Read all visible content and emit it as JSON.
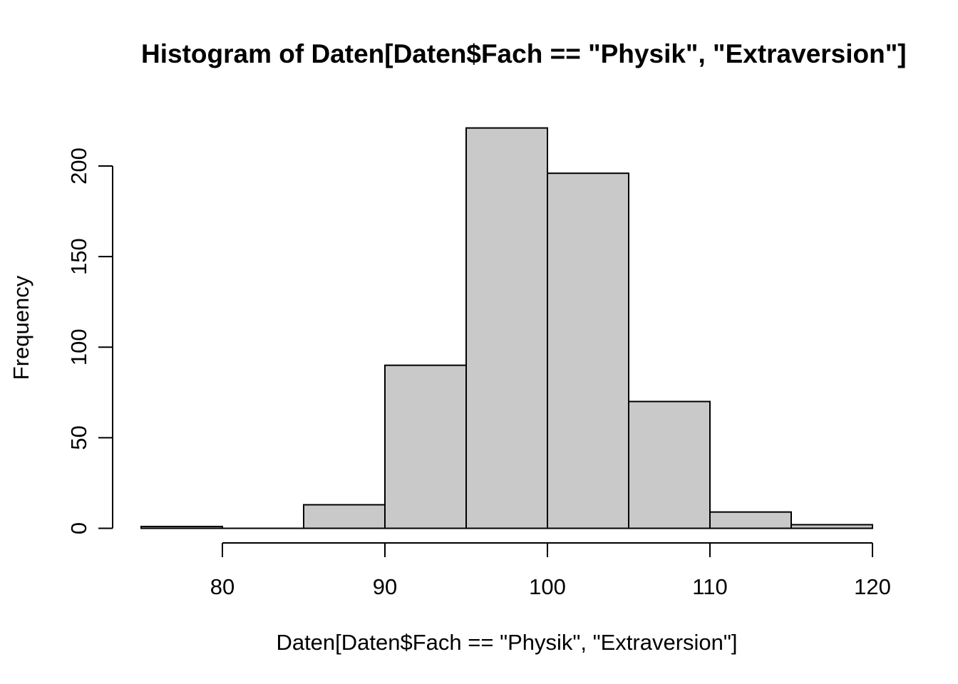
{
  "title": "Histogram of Daten[Daten$Fach == \"Physik\", \"Extraversion\"]",
  "chart_data": {
    "type": "bar",
    "subtype": "histogram",
    "title": "Histogram of Daten[Daten$Fach == \"Physik\", \"Extraversion\"]",
    "xlabel": "Daten[Daten$Fach == \"Physik\", \"Extraversion\"]",
    "ylabel": "Frequency",
    "bin_edges": [
      75,
      80,
      85,
      90,
      95,
      100,
      105,
      110,
      115,
      120
    ],
    "values": [
      1,
      0,
      13,
      90,
      221,
      196,
      70,
      9,
      2
    ],
    "x_ticks": [
      80,
      90,
      100,
      110,
      120
    ],
    "y_ticks": [
      0,
      50,
      100,
      150,
      200
    ],
    "xlim": [
      75,
      120
    ],
    "ylim": [
      0,
      200
    ],
    "grid": "off",
    "legend": "none",
    "bar_fill": "#c9c9c9",
    "bar_stroke": "#000000",
    "axis_color": "#000000"
  }
}
